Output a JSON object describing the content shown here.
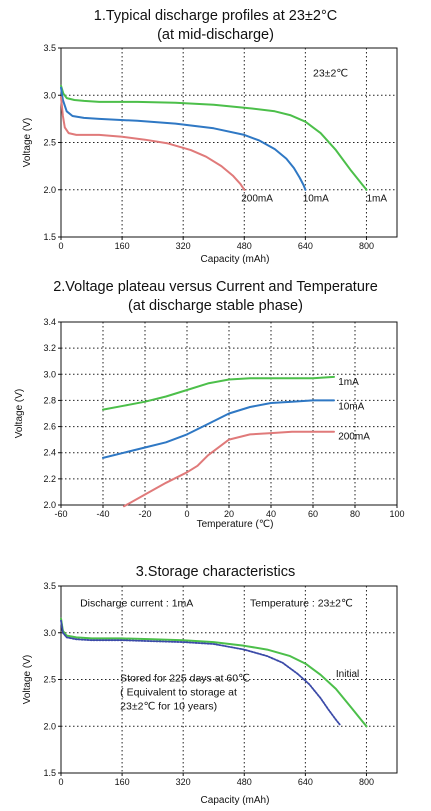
{
  "chart_data": [
    {
      "type": "line",
      "title": "1.Typical discharge profiles at 23±2°C",
      "subtitle": "(at mid-discharge)",
      "xlabel": "Capacity (mAh)",
      "ylabel": "Voltage (V)",
      "xlim": [
        0,
        880
      ],
      "ylim": [
        1.5,
        3.5
      ],
      "xticks": [
        "0",
        "160",
        "320",
        "480",
        "640",
        "800"
      ],
      "xtick_values": [
        0,
        160,
        320,
        480,
        640,
        800
      ],
      "yticks": [
        "1.5",
        "2.0",
        "2.5",
        "3.0",
        "3.5"
      ],
      "ytick_values": [
        1.5,
        2.0,
        2.5,
        3.0,
        3.5
      ],
      "grid": true,
      "annotations": [
        {
          "text": "23±2℃",
          "x": 660,
          "y": 3.2
        }
      ],
      "series": [
        {
          "name": "1mA",
          "color": "#4cbf4a",
          "label_at": [
            800,
            1.92
          ],
          "x": [
            0,
            6,
            15,
            35,
            60,
            100,
            200,
            300,
            400,
            500,
            560,
            600,
            640,
            680,
            720,
            760,
            790,
            800
          ],
          "y": [
            3.1,
            3.02,
            2.97,
            2.95,
            2.94,
            2.93,
            2.93,
            2.92,
            2.9,
            2.86,
            2.83,
            2.79,
            2.72,
            2.6,
            2.42,
            2.2,
            2.05,
            2.0
          ]
        },
        {
          "name": "10mA",
          "color": "#2f78c4",
          "label_at": [
            633,
            1.92
          ],
          "x": [
            0,
            5,
            15,
            30,
            60,
            100,
            200,
            300,
            400,
            480,
            520,
            560,
            590,
            610,
            625,
            635,
            640
          ],
          "y": [
            3.08,
            2.95,
            2.83,
            2.78,
            2.76,
            2.75,
            2.73,
            2.7,
            2.65,
            2.58,
            2.52,
            2.43,
            2.33,
            2.23,
            2.13,
            2.05,
            2.0
          ]
        },
        {
          "name": "200mA",
          "color": "#e07a7a",
          "label_at": [
            472,
            1.92
          ],
          "x": [
            0,
            5,
            10,
            20,
            40,
            70,
            100,
            160,
            220,
            280,
            340,
            380,
            420,
            450,
            470,
            480
          ],
          "y": [
            2.98,
            2.78,
            2.66,
            2.6,
            2.58,
            2.58,
            2.58,
            2.56,
            2.53,
            2.49,
            2.42,
            2.35,
            2.25,
            2.15,
            2.06,
            2.0
          ]
        }
      ]
    },
    {
      "type": "line",
      "title": "2.Voltage plateau versus Current and Temperature",
      "subtitle": "(at discharge stable phase)",
      "xlabel": "Temperature (℃)",
      "ylabel": "Voltage (V)",
      "xlim": [
        -60,
        100
      ],
      "ylim": [
        2.0,
        3.4
      ],
      "xticks": [
        "-60",
        "-40",
        "-20",
        "0",
        "20",
        "40",
        "60",
        "80",
        "100"
      ],
      "xtick_values": [
        -60,
        -40,
        -20,
        0,
        20,
        40,
        60,
        80,
        100
      ],
      "yticks": [
        "2.0",
        "2.2",
        "2.4",
        "2.6",
        "2.8",
        "3.0",
        "3.2",
        "3.4"
      ],
      "ytick_values": [
        2.0,
        2.2,
        2.4,
        2.6,
        2.8,
        3.0,
        3.2,
        3.4
      ],
      "grid": true,
      "series": [
        {
          "name": "1mA",
          "color": "#4cbf4a",
          "label_at": [
            72,
            2.95
          ],
          "x": [
            -40,
            -30,
            -20,
            -10,
            0,
            10,
            20,
            30,
            40,
            50,
            60,
            70
          ],
          "y": [
            2.73,
            2.76,
            2.79,
            2.83,
            2.88,
            2.93,
            2.96,
            2.97,
            2.97,
            2.97,
            2.97,
            2.98
          ]
        },
        {
          "name": "10mA",
          "color": "#2f78c4",
          "label_at": [
            72,
            2.76
          ],
          "x": [
            -40,
            -30,
            -20,
            -10,
            0,
            10,
            20,
            30,
            40,
            50,
            60,
            70
          ],
          "y": [
            2.36,
            2.4,
            2.44,
            2.48,
            2.54,
            2.62,
            2.7,
            2.75,
            2.78,
            2.79,
            2.8,
            2.8
          ]
        },
        {
          "name": "200mA",
          "color": "#e07a7a",
          "label_at": [
            72,
            2.53
          ],
          "x": [
            -30,
            -20,
            -10,
            0,
            5,
            10,
            20,
            30,
            40,
            50,
            60,
            70
          ],
          "y": [
            1.99,
            2.08,
            2.17,
            2.25,
            2.3,
            2.38,
            2.5,
            2.54,
            2.55,
            2.56,
            2.56,
            2.56
          ]
        }
      ]
    },
    {
      "type": "line",
      "title": "3.Storage characteristics",
      "xlabel": "Capacity (mAh)",
      "ylabel": "Voltage (V)",
      "xlim": [
        0,
        880
      ],
      "ylim": [
        1.5,
        3.5
      ],
      "xticks": [
        "0",
        "160",
        "320",
        "480",
        "640",
        "800"
      ],
      "xtick_values": [
        0,
        160,
        320,
        480,
        640,
        800
      ],
      "yticks": [
        "1.5",
        "2.0",
        "2.5",
        "3.0",
        "3.5"
      ],
      "ytick_values": [
        1.5,
        2.0,
        2.5,
        3.0,
        3.5
      ],
      "grid": true,
      "annotations": [
        {
          "text": "Discharge current : 1mA",
          "x": 50,
          "y": 3.28
        },
        {
          "text": "Temperature : 23±2℃",
          "x": 495,
          "y": 3.28
        },
        {
          "text": "Stored for 225 days at 60℃",
          "x": 155,
          "y": 2.48
        },
        {
          "text": "( Equivalent to storage at",
          "x": 155,
          "y": 2.33
        },
        {
          "text": "23±2℃ for 10 years)",
          "x": 155,
          "y": 2.18
        }
      ],
      "series": [
        {
          "name": "Initial",
          "color": "#4cbf4a",
          "label_at": [
            720,
            2.57
          ],
          "x": [
            0,
            5,
            15,
            40,
            80,
            160,
            240,
            320,
            400,
            480,
            540,
            600,
            640,
            680,
            720,
            760,
            790,
            800
          ],
          "y": [
            3.15,
            3.02,
            2.97,
            2.95,
            2.94,
            2.94,
            2.93,
            2.92,
            2.9,
            2.86,
            2.82,
            2.75,
            2.67,
            2.55,
            2.4,
            2.2,
            2.05,
            2.0
          ]
        },
        {
          "name": "Stored for 225 days at 60℃",
          "color": "#3b4aa8",
          "dashed": true,
          "x": [
            0,
            5,
            15,
            40,
            80,
            160,
            240,
            320,
            400,
            480,
            540,
            580,
            620,
            650,
            680,
            700,
            720,
            730
          ],
          "y": [
            3.13,
            3.0,
            2.95,
            2.93,
            2.92,
            2.92,
            2.91,
            2.9,
            2.88,
            2.82,
            2.75,
            2.68,
            2.56,
            2.45,
            2.3,
            2.18,
            2.07,
            2.02
          ]
        }
      ]
    }
  ]
}
